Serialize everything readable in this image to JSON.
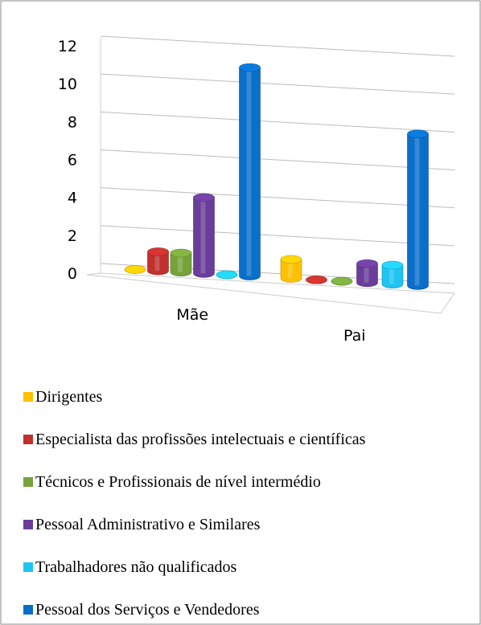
{
  "chart_data": {
    "type": "bar3d",
    "categories": [
      "Mãe",
      "Pai"
    ],
    "series": [
      {
        "name": "Dirigentes",
        "color": "#ffc000",
        "values": [
          0,
          1
        ]
      },
      {
        "name": "Especialista das profissões intelectuais e científicas",
        "color": "#c0302c",
        "values": [
          1,
          0
        ]
      },
      {
        "name": "Técnicos e Profissionais de nível intermédio",
        "color": "#77a33a",
        "values": [
          1,
          0
        ]
      },
      {
        "name": "Pessoal Administrativo e Similares",
        "color": "#6a3d9a",
        "values": [
          4,
          1
        ]
      },
      {
        "name": "Trabalhadores não qualificados",
        "color": "#1fc4f0",
        "values": [
          0,
          1
        ]
      },
      {
        "name": "Pessoal dos Serviços e Vendedores",
        "color": "#0a6fc9",
        "values": [
          11,
          8
        ]
      }
    ],
    "ylim": [
      0,
      12
    ],
    "yticks": [
      0,
      2,
      4,
      6,
      8,
      10,
      12
    ],
    "grid": true,
    "legend": "bottom"
  }
}
